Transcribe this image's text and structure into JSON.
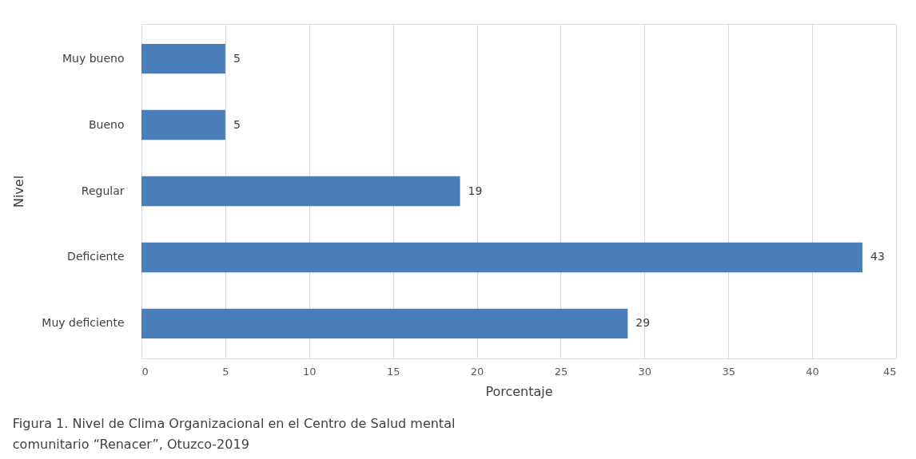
{
  "chart_data": {
    "type": "bar",
    "orientation": "horizontal",
    "xlabel": "Porcentaje",
    "ylabel": "Nivel",
    "categories": [
      "Muy bueno",
      "Bueno",
      "Regular",
      "Deficiente",
      "Muy deficiente"
    ],
    "values": [
      5,
      5,
      19,
      43,
      29
    ],
    "color": "#4a7ebb",
    "xlim": [
      0,
      45
    ],
    "xticks": [
      0,
      5,
      10,
      15,
      20,
      25,
      30,
      35,
      40,
      45
    ],
    "grid": "x",
    "data_labels": true,
    "annotations": [
      "Figura 1. Nivel de Clima Organizacional en el Centro de Salud mental comunitario “Renacer”, Otuzco-2019"
    ]
  }
}
